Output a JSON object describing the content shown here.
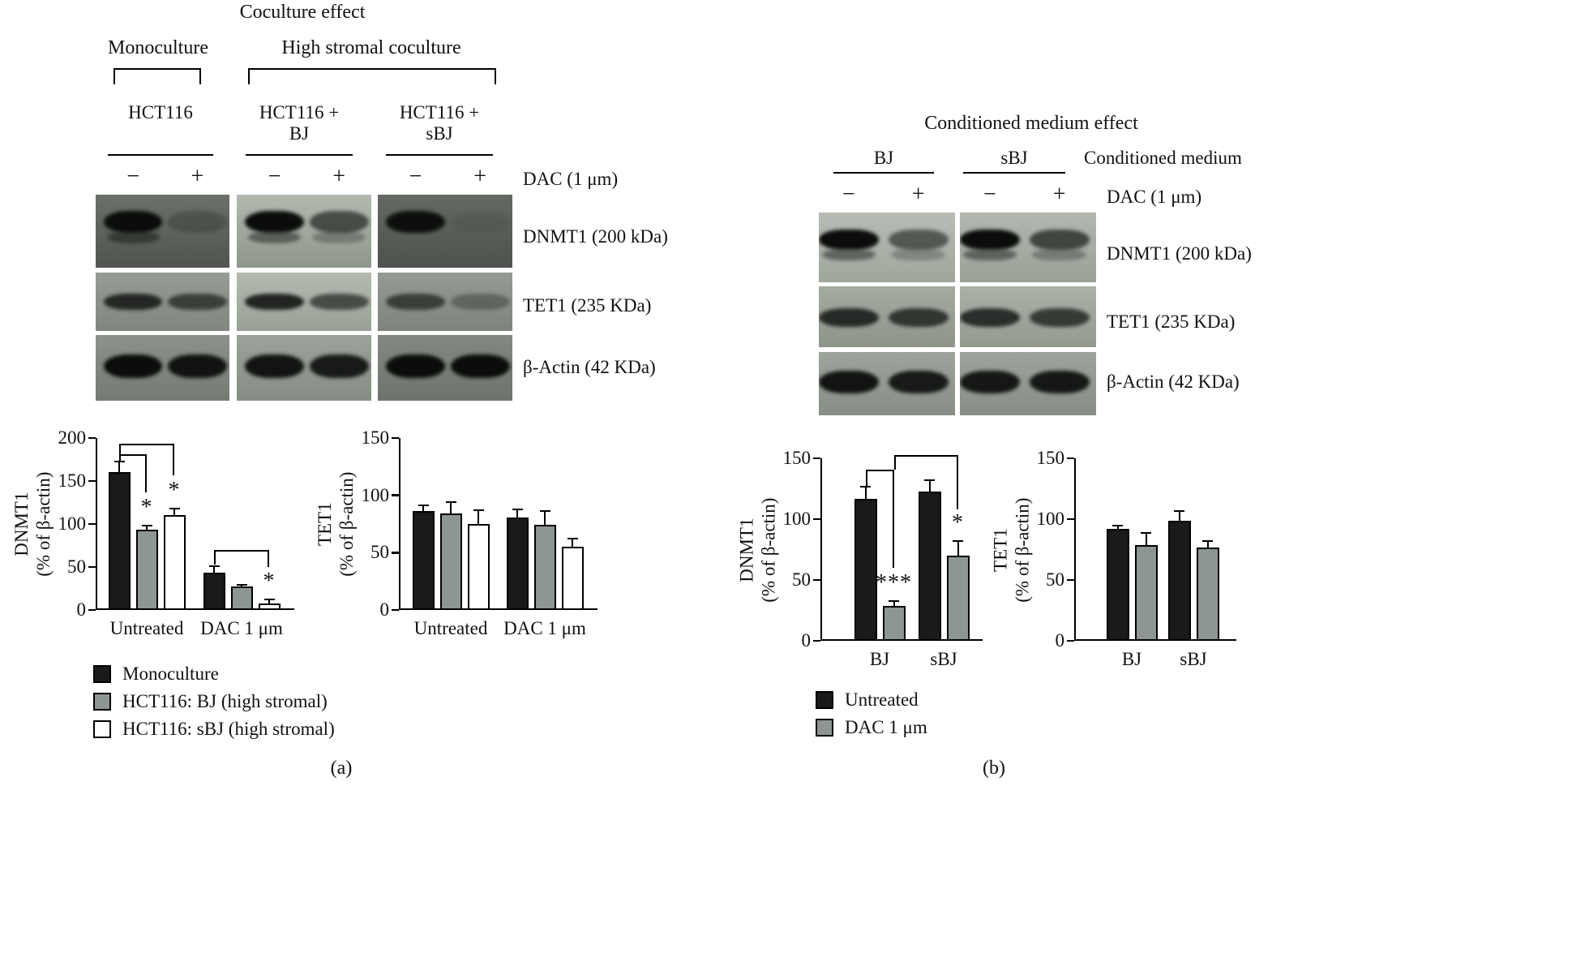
{
  "figure": {
    "panel_a_label": "(a)",
    "panel_b_label": "(b)"
  },
  "panel_a": {
    "title": "Coculture effect",
    "group_monoculture": "Monoculture",
    "group_coculture": "High stromal coculture",
    "conditions": [
      {
        "line1": "HCT116",
        "line2": ""
      },
      {
        "line1": "HCT116 +",
        "line2": "BJ"
      },
      {
        "line1": "HCT116 +",
        "line2": "sBJ"
      }
    ],
    "dac_label": "DAC (1 μm)",
    "lane_signs": [
      "−",
      "+"
    ],
    "blot_rows": [
      {
        "label": "DNMT1 (200 kDa)",
        "band_y": 0.22,
        "band_h": 0.3,
        "panels": [
          {
            "bg1": "#6b7069",
            "bg2": "#50554f",
            "lanes": [
              {
                "i": 1.0,
                "d": 1
              },
              {
                "i": 0.22
              }
            ]
          },
          {
            "bg1": "#b2baaf",
            "bg2": "#8f978c",
            "lanes": [
              {
                "i": 1.0,
                "d": 1
              },
              {
                "i": 0.6,
                "d": 1
              }
            ]
          },
          {
            "bg1": "#646963",
            "bg2": "#4d524c",
            "lanes": [
              {
                "i": 0.97
              },
              {
                "i": 0.07
              }
            ]
          }
        ]
      },
      {
        "label": "TET1 (235 KDa)",
        "band_y": 0.36,
        "band_h": 0.28,
        "panels": [
          {
            "bg1": "#969d94",
            "bg2": "#7f867d",
            "lanes": [
              {
                "i": 0.8
              },
              {
                "i": 0.62
              }
            ]
          },
          {
            "bg1": "#b3bab0",
            "bg2": "#99a096",
            "lanes": [
              {
                "i": 0.85
              },
              {
                "i": 0.6
              }
            ]
          },
          {
            "bg1": "#949b92",
            "bg2": "#7d847b",
            "lanes": [
              {
                "i": 0.62
              },
              {
                "i": 0.32
              }
            ]
          }
        ]
      },
      {
        "label": "β-Actin (42 KDa)",
        "band_y": 0.3,
        "band_h": 0.36,
        "panels": [
          {
            "bg1": "#8b928a",
            "bg2": "#747b72",
            "lanes": [
              {
                "i": 1.0
              },
              {
                "i": 0.95
              }
            ]
          },
          {
            "bg1": "#9ba29a",
            "bg2": "#868d84",
            "lanes": [
              {
                "i": 0.95
              },
              {
                "i": 0.9
              }
            ]
          },
          {
            "bg1": "#828980",
            "bg2": "#6d746b",
            "lanes": [
              {
                "i": 1.0
              },
              {
                "i": 1.0
              }
            ]
          }
        ]
      }
    ],
    "legend": [
      {
        "label": "Monoculture",
        "color": "#1a1a1a"
      },
      {
        "label": "HCT116: BJ (high stromal)",
        "color": "#8e9691"
      },
      {
        "label": "HCT116: sBJ (high stromal)",
        "color": "#ffffff"
      }
    ]
  },
  "panel_b": {
    "title": "Conditioned medium effect",
    "media_labels": [
      "BJ",
      "sBJ"
    ],
    "conditioned_medium_label": "Conditioned medium",
    "dac_label": "DAC (1 μm)",
    "lane_signs": [
      "−",
      "+"
    ],
    "blot_rows": [
      {
        "label": "DNMT1 (200 kDa)",
        "band_y": 0.24,
        "band_h": 0.3,
        "panels": [
          {
            "bg1": "#b7bdb4",
            "bg2": "#9fa69c",
            "lanes": [
              {
                "i": 1.0,
                "d": 1
              },
              {
                "i": 0.55,
                "d": 1
              }
            ]
          },
          {
            "bg1": "#b2b8af",
            "bg2": "#9aa197",
            "lanes": [
              {
                "i": 1.0,
                "d": 1
              },
              {
                "i": 0.65,
                "d": 1
              }
            ]
          }
        ]
      },
      {
        "label": "TET1 (235 KDa)",
        "band_y": 0.36,
        "band_h": 0.3,
        "panels": [
          {
            "bg1": "#a4aba1",
            "bg2": "#8d948a",
            "lanes": [
              {
                "i": 0.8
              },
              {
                "i": 0.72
              }
            ]
          },
          {
            "bg1": "#aab1a7",
            "bg2": "#939a90",
            "lanes": [
              {
                "i": 0.78
              },
              {
                "i": 0.7
              }
            ]
          }
        ]
      },
      {
        "label": "β-Actin (42 KDa)",
        "band_y": 0.3,
        "band_h": 0.36,
        "panels": [
          {
            "bg1": "#9da49b",
            "bg2": "#878e85",
            "lanes": [
              {
                "i": 0.95
              },
              {
                "i": 0.9
              }
            ]
          },
          {
            "bg1": "#9da49b",
            "bg2": "#878e85",
            "lanes": [
              {
                "i": 0.92
              },
              {
                "i": 0.92
              }
            ]
          }
        ]
      }
    ],
    "legend": [
      {
        "label": "Untreated",
        "color": "#1a1a1a"
      },
      {
        "label": "DAC 1 μm",
        "color": "#8e9691"
      }
    ]
  },
  "chart_data": [
    {
      "id": "a-dnmt1",
      "type": "bar",
      "ylabel_lines": [
        "DNMT1",
        "(% of β-actin)"
      ],
      "ylim": [
        0,
        200
      ],
      "yticks": [
        0,
        50,
        100,
        150,
        200
      ],
      "categories": [
        "Untreated",
        "DAC 1 μm"
      ],
      "grid": false,
      "series": [
        {
          "name": "Monoculture",
          "color": "#1a1a1a",
          "values": [
            160,
            43
          ],
          "errors": [
            13,
            8
          ]
        },
        {
          "name": "HCT116: BJ (high stromal)",
          "color": "#8e9691",
          "values": [
            93,
            27
          ],
          "errors": [
            5,
            2
          ],
          "sig": [
            "*",
            ""
          ]
        },
        {
          "name": "HCT116: sBJ (high stromal)",
          "color": "#ffffff",
          "values": [
            110,
            8
          ],
          "errors": [
            8,
            4
          ],
          "sig": [
            "*",
            "*"
          ]
        }
      ],
      "brackets": [
        {
          "c1": 0,
          "s1": 0,
          "c2": 0,
          "s2": 1,
          "y": 181,
          "drop1": 9,
          "drop2": 44
        },
        {
          "c1": 0,
          "s1": 0,
          "c2": 0,
          "s2": 2,
          "y": 193,
          "drop1": 21,
          "drop2": 36
        },
        {
          "c1": 1,
          "s1": 0,
          "c2": 1,
          "s2": 2,
          "y": 70,
          "drop1": 17,
          "drop2": 20
        }
      ]
    },
    {
      "id": "a-tet1",
      "type": "bar",
      "ylabel_lines": [
        "TET1",
        "(% of β-actin)"
      ],
      "ylim": [
        0,
        150
      ],
      "yticks": [
        0,
        50,
        100,
        150
      ],
      "categories": [
        "Untreated",
        "DAC 1 μm"
      ],
      "grid": false,
      "series": [
        {
          "name": "Monoculture",
          "color": "#1a1a1a",
          "values": [
            86,
            81
          ],
          "errors": [
            5,
            7
          ]
        },
        {
          "name": "HCT116: BJ (high stromal)",
          "color": "#8e9691",
          "values": [
            84,
            74
          ],
          "errors": [
            10,
            12
          ]
        },
        {
          "name": "HCT116: sBJ (high stromal)",
          "color": "#ffffff",
          "values": [
            75,
            55
          ],
          "errors": [
            12,
            7
          ]
        }
      ]
    },
    {
      "id": "b-dnmt1",
      "type": "bar",
      "ylabel_lines": [
        "DNMT1",
        "(% of β-actin)"
      ],
      "ylim": [
        0,
        150
      ],
      "yticks": [
        0,
        50,
        100,
        150
      ],
      "categories": [
        "BJ",
        "sBJ"
      ],
      "grid": false,
      "series": [
        {
          "name": "Untreated",
          "color": "#1a1a1a",
          "values": [
            117,
            123
          ],
          "errors": [
            10,
            9
          ]
        },
        {
          "name": "DAC 1 μm",
          "color": "#8e9691",
          "values": [
            29,
            70
          ],
          "errors": [
            4,
            12
          ],
          "sig": [
            "***",
            "*"
          ]
        }
      ],
      "brackets": [
        {
          "c1": 0,
          "s1": 0,
          "c2": 0,
          "s2": 1,
          "y": 141,
          "drop1": 14,
          "drop2": 81
        },
        {
          "c1": 0,
          "s1": 1,
          "c2": 1,
          "s2": 1,
          "y": 153,
          "drop1": 12,
          "drop2": 45
        }
      ]
    },
    {
      "id": "b-tet1",
      "type": "bar",
      "ylabel_lines": [
        "TET1",
        "(% of β-actin)"
      ],
      "ylim": [
        0,
        150
      ],
      "yticks": [
        0,
        50,
        100,
        150
      ],
      "categories": [
        "BJ",
        "sBJ"
      ],
      "grid": false,
      "series": [
        {
          "name": "Untreated",
          "color": "#1a1a1a",
          "values": [
            92,
            99
          ],
          "errors": [
            3,
            8
          ]
        },
        {
          "name": "DAC 1 μm",
          "color": "#8e9691",
          "values": [
            79,
            77
          ],
          "errors": [
            10,
            5
          ]
        }
      ]
    }
  ]
}
